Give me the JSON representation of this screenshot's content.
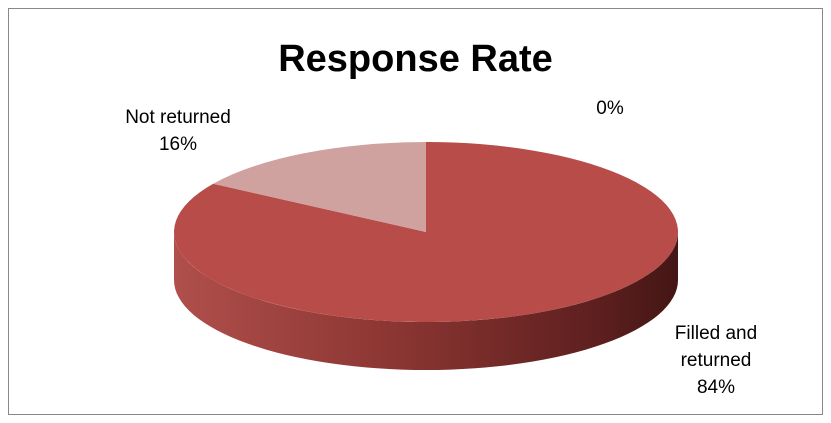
{
  "chart_data": {
    "type": "pie",
    "title": "Response Rate",
    "slices": [
      {
        "label": "Filled and returned",
        "value": 84,
        "display": "84%",
        "color": "#b84c49"
      },
      {
        "label": "Not returned",
        "value": 16,
        "display": "16%",
        "color": "#cfa19f"
      },
      {
        "label": "",
        "value": 0,
        "display": "0%",
        "color": "#8064a2"
      }
    ],
    "legend": "none",
    "style": "3d"
  }
}
